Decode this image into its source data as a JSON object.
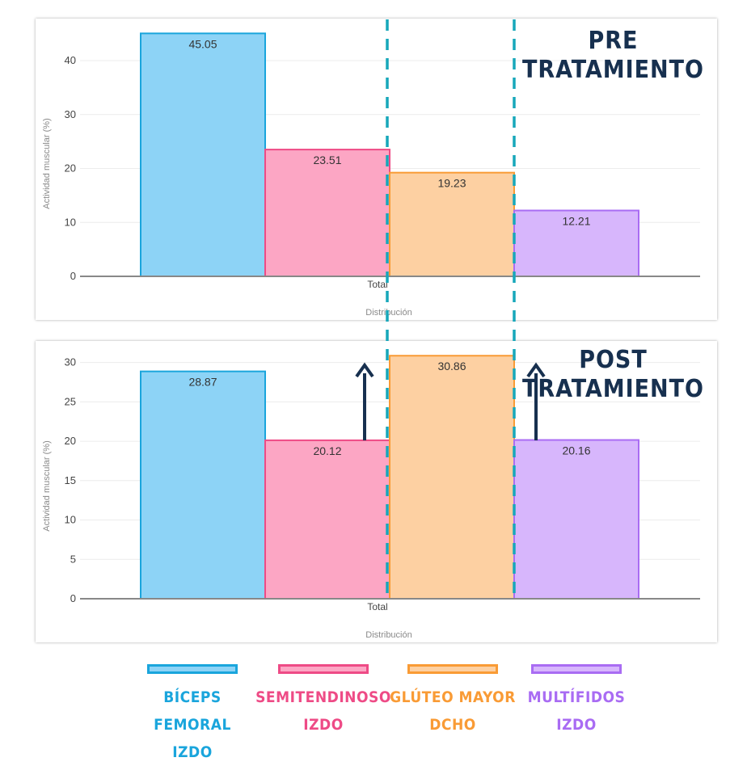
{
  "colors": {
    "biceps": {
      "fill": "#8dd3f6",
      "stroke": "#1aa5dc",
      "text": "#1aa5dc"
    },
    "semi": {
      "fill": "#fca6c4",
      "stroke": "#ee4b86",
      "text": "#ee4b86"
    },
    "gluteo": {
      "fill": "#fdd0a2",
      "stroke": "#f99b35",
      "text": "#f99b35"
    },
    "multi": {
      "fill": "#d7b6fc",
      "stroke": "#a96cf3",
      "text": "#a96cf3"
    },
    "annotation": "#17304f",
    "divider": "#17a7ba"
  },
  "pre": {
    "title_line1": "PRE",
    "title_line2": "TRATAMIENTO"
  },
  "post": {
    "title_line1": "POST",
    "title_line2": "TRATAMIENTO"
  },
  "legend": {
    "biceps": {
      "line1": "BÍCEPS FEMORAL",
      "line2": "IZDO"
    },
    "semi": {
      "line1": "SEMITENDINOSO",
      "line2": "IZDO"
    },
    "gluteo": {
      "line1": "GLÚTEO MAYOR",
      "line2": "DCHO"
    },
    "multi": {
      "line1": "MULTÍFIDOS",
      "line2": "IZDO"
    }
  },
  "annotations": {
    "arrows": [
      "arrow-up-icon",
      "arrow-up-icon"
    ],
    "divider_style": "dashed"
  },
  "chart_data": [
    {
      "type": "bar",
      "categories": [
        "Total"
      ],
      "xlabel": "Distribución",
      "ylabel": "Actividad muscular (%)",
      "ylim": [
        0,
        46
      ],
      "yticks": [
        0,
        10,
        20,
        30,
        40
      ],
      "series": [
        {
          "key": "biceps",
          "values": [
            45.05
          ]
        },
        {
          "key": "semi",
          "values": [
            23.51
          ]
        },
        {
          "key": "gluteo",
          "values": [
            19.23
          ]
        },
        {
          "key": "multi",
          "values": [
            12.21
          ]
        }
      ],
      "value_labels": [
        "45.05",
        "23.51",
        "19.23",
        "12.21"
      ],
      "grid": true,
      "legend": "none"
    },
    {
      "type": "bar",
      "categories": [
        "Total"
      ],
      "xlabel": "Distribución",
      "ylabel": "Actividad muscular (%)",
      "ylim": [
        0,
        31.5
      ],
      "yticks": [
        0,
        5,
        10,
        15,
        20,
        25,
        30
      ],
      "series": [
        {
          "key": "biceps",
          "values": [
            28.87
          ]
        },
        {
          "key": "semi",
          "values": [
            20.12
          ]
        },
        {
          "key": "gluteo",
          "values": [
            30.86
          ]
        },
        {
          "key": "multi",
          "values": [
            20.16
          ]
        }
      ],
      "value_labels": [
        "28.87",
        "20.12",
        "30.86",
        "20.16"
      ],
      "grid": true,
      "legend": "none"
    }
  ]
}
